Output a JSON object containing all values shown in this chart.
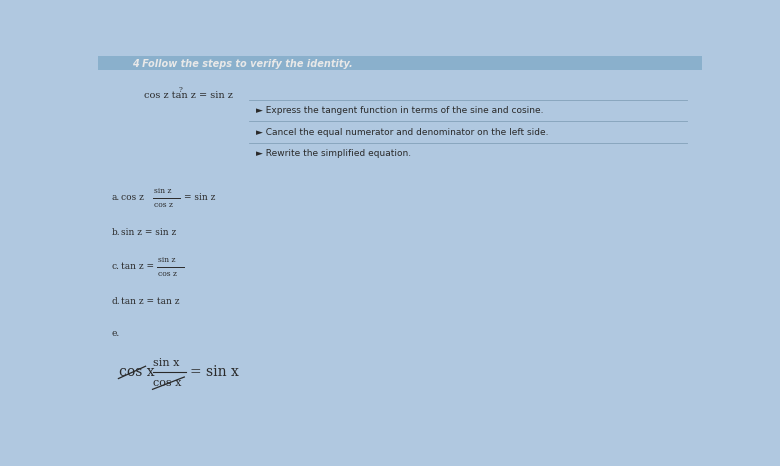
{
  "bg_color": "#b0c8e0",
  "title_bar_color": "#8ab0cc",
  "title_text": "4 Follow the steps to verify the identity.",
  "identity": "cos z tan z = sin z",
  "steps": [
    "Express the tangent function in terms of the sine and cosine.",
    "Cancel the equal numerator and denominator on the left side.",
    "Rewrite the simplified equation."
  ],
  "text_color": "#2a2a2a",
  "dark_text": "#1a1a1a",
  "line_color": "#6a90b0",
  "step_line_color": "#7090a8",
  "bg_top": "#c0d4e8",
  "bg_mid": "#b8cce0",
  "bg_bot": "#c8dae8"
}
